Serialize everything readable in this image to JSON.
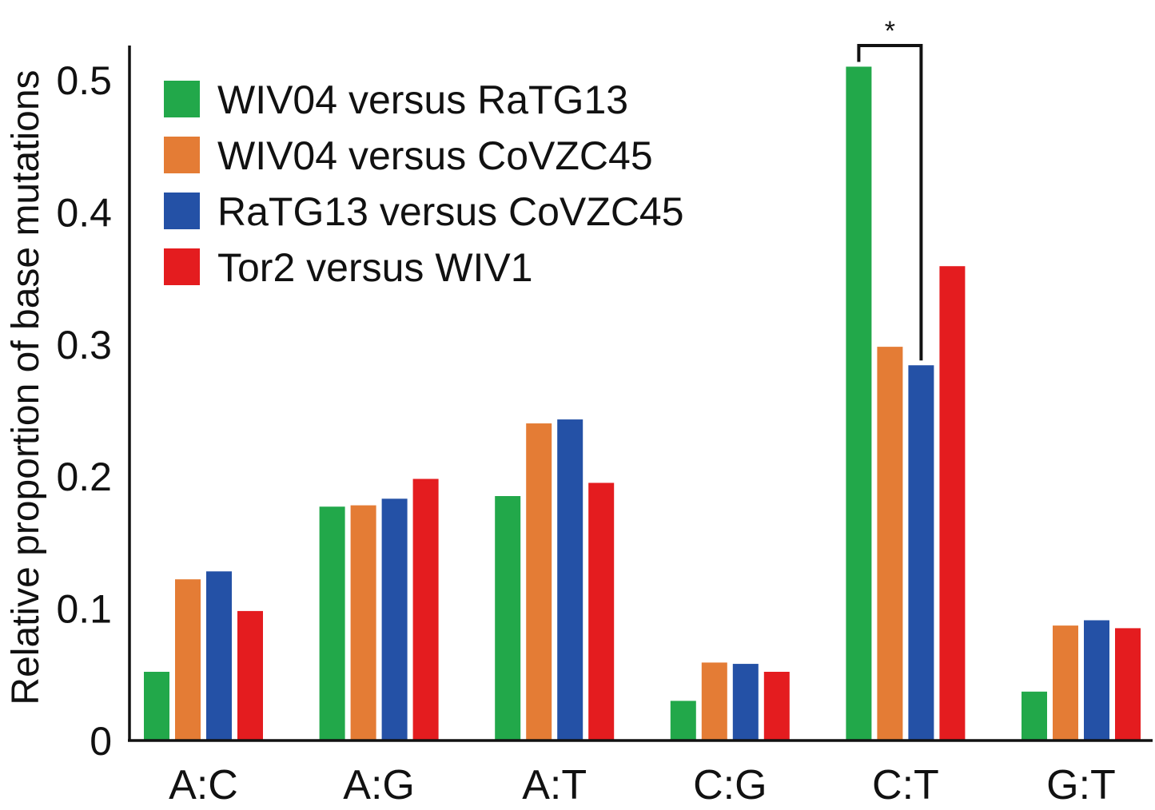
{
  "chart_data": {
    "type": "bar",
    "title": "",
    "xlabel": "",
    "ylabel": "Relative proportion of base mutations",
    "ylim": [
      0,
      0.55
    ],
    "yticks": [
      {
        "value": 0,
        "label": "0"
      },
      {
        "value": 0.1,
        "label": "0.1"
      },
      {
        "value": 0.2,
        "label": "0.2"
      },
      {
        "value": 0.3,
        "label": "0.3"
      },
      {
        "value": 0.4,
        "label": "0.4"
      },
      {
        "value": 0.5,
        "label": "0.5"
      }
    ],
    "categories": [
      "A:C",
      "A:G",
      "A:T",
      "C:G",
      "C:T",
      "G:T"
    ],
    "series": [
      {
        "name": "WIV04 versus RaTG13",
        "color": "#22a84a",
        "values": [
          0.052,
          0.177,
          0.185,
          0.03,
          0.51,
          0.037
        ]
      },
      {
        "name": "WIV04 versus CoVZC45",
        "color": "#e47c35",
        "values": [
          0.122,
          0.178,
          0.24,
          0.059,
          0.298,
          0.087
        ]
      },
      {
        "name": "RaTG13 versus CoVZC45",
        "color": "#2451a6",
        "values": [
          0.128,
          0.183,
          0.243,
          0.058,
          0.284,
          0.091
        ]
      },
      {
        "name": "Tor2 versus WIV1",
        "color": "#e41c1f",
        "values": [
          0.098,
          0.198,
          0.195,
          0.052,
          0.359,
          0.085
        ]
      }
    ],
    "legend_position": "top-left",
    "grid": false,
    "annotations": [
      {
        "text": "*",
        "category": "C:T",
        "between_series": [
          0,
          2
        ],
        "meaning": "significance bracket"
      }
    ]
  }
}
